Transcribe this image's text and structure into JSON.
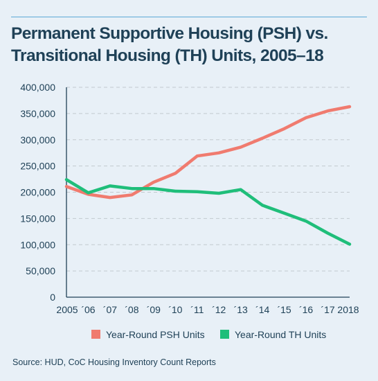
{
  "header": {
    "title_line1": "Permanent Supportive Housing (PSH) vs.",
    "title_line2": "Transitional Housing (TH) Units, 2005–18"
  },
  "source": "Source: HUD, CoC Housing Inventory Count Reports",
  "colors": {
    "psh": "#f07b6f",
    "th": "#1fbe7a",
    "grid": "#c2c9cf",
    "axis": "#1f4157",
    "background": "#e8f0f7"
  },
  "chart_data": {
    "type": "line",
    "title": "Permanent Supportive Housing (PSH) vs. Transitional Housing (TH) Units, 2005–18",
    "x": [
      2005,
      2006,
      2007,
      2008,
      2009,
      2010,
      2011,
      2012,
      2013,
      2014,
      2015,
      2016,
      2017,
      2018
    ],
    "categories": [
      "2005",
      "´06",
      "´07",
      "´08",
      "´09",
      "´10",
      "´11",
      "´12",
      "´13",
      "´14",
      "´15",
      "´16",
      "´17",
      "2018"
    ],
    "ylim": [
      0,
      400000
    ],
    "yticks": [
      0,
      50000,
      100000,
      150000,
      200000,
      250000,
      300000,
      350000,
      400000
    ],
    "ytick_labels": [
      "0",
      "50,000",
      "100,000",
      "150,000",
      "200,000",
      "250,000",
      "300,000",
      "350,000",
      "400,000"
    ],
    "grid": true,
    "legend_position": "bottom",
    "series": [
      {
        "name": "Year-Round PSH Units",
        "values": [
          211000,
          196000,
          190000,
          195000,
          219000,
          236000,
          269000,
          275000,
          286000,
          303000,
          321000,
          342000,
          355000,
          363000
        ]
      },
      {
        "name": "Year-Round TH Units",
        "values": [
          224000,
          199000,
          212000,
          207000,
          207000,
          202000,
          201000,
          198000,
          205000,
          175000,
          160000,
          145000,
          122000,
          101000
        ]
      }
    ]
  }
}
